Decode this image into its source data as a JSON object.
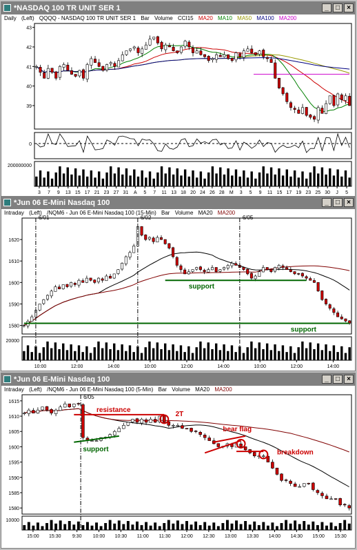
{
  "colors": {
    "ma20": "#cc0000",
    "ma10": "#008000",
    "ma50": "#999900",
    "ma100": "#000080",
    "ma200": "#cc00cc",
    "up": "#ffffff",
    "down": "#cc0000",
    "annot_red": "#cc0000",
    "annot_green": "#006600"
  },
  "window_buttons": {
    "minimize": "_",
    "maximize": "□",
    "close": "×"
  },
  "windows": [
    {
      "title": "*NASDAQ 100 TR UNIT SER 1",
      "period": "Daily",
      "axis": "(Left)",
      "symbol": "QQQQ - NASDAQ 100 TR UNIT SER 1",
      "type": "Bar",
      "volume": "Volume",
      "cci": "CCI15",
      "ma_labels": [
        "MA20",
        "MA10",
        "MA50",
        "MA100",
        "MA200"
      ]
    },
    {
      "title": "*Jun 06  E-Mini Nasdaq 100",
      "period": "Intraday",
      "axis": "(Left)",
      "symbol": "/NQM6 - Jun 06  E-Mini Nasdaq 100 (15-Min)",
      "type": "Bar",
      "volume": "Volume",
      "ma_labels": [
        "MA20",
        "MA200"
      ]
    },
    {
      "title": "*Jun 06  E-Mini Nasdaq 100",
      "period": "Intraday",
      "axis": "(Left)",
      "symbol": "/NQM6 - Jun 06  E-Mini Nasdaq 100 (5-Min)",
      "type": "Bar",
      "volume": "Volume",
      "ma_labels": [
        "MA20",
        "MA200"
      ]
    }
  ],
  "chart_data": [
    {
      "type": "candlestick",
      "ylim": [
        37.8,
        43.2
      ],
      "yticks": [
        "43",
        "42",
        "41",
        "40",
        "39"
      ],
      "xticks": [
        "3",
        "7",
        "9",
        "13",
        "15",
        "17",
        "21",
        "23",
        "27",
        "31",
        "A",
        "5",
        "7",
        "11",
        "13",
        "18",
        "20",
        "24",
        "26",
        "28",
        "M",
        "3",
        "5",
        "9",
        "11",
        "15",
        "17",
        "19",
        "23",
        "25",
        "30",
        "J",
        "5"
      ],
      "closes": [
        41.0,
        40.7,
        40.4,
        40.9,
        40.7,
        40.4,
        41.0,
        41.1,
        40.8,
        40.6,
        40.5,
        40.8,
        40.4,
        41.1,
        41.4,
        41.2,
        41.0,
        40.8,
        41.1,
        41.2,
        41.0,
        41.3,
        41.6,
        41.8,
        41.9,
        42.0,
        41.7,
        41.9,
        42.1,
        42.4,
        42.5,
        42.2,
        41.9,
        42.1,
        42.0,
        41.8,
        41.7,
        42.0,
        42.3,
        42.0,
        41.7,
        41.8,
        41.6,
        41.5,
        41.3,
        41.4,
        41.6,
        41.5,
        41.6,
        41.4,
        41.3,
        41.7,
        41.5,
        41.8,
        41.9,
        41.7,
        41.6,
        41.8,
        41.5,
        41.4,
        41.2,
        40.4,
        39.9,
        39.6,
        39.2,
        38.9,
        38.8,
        38.6,
        38.9,
        38.5,
        38.4,
        38.3,
        38.9,
        38.6,
        39.1,
        39.5,
        39.0,
        39.6,
        39.3,
        39.5,
        39.0
      ],
      "cci_zero": "0",
      "volume_label": "200000000"
    },
    {
      "type": "candlestick",
      "ylim": [
        1576,
        1630
      ],
      "yticks": [
        "1620",
        "1610",
        "1600",
        "1590",
        "1580"
      ],
      "xticks": [
        "10:00",
        "12:00",
        "14:00",
        "10:00",
        "12:00",
        "14:00",
        "10:00",
        "12:00",
        "14:00"
      ],
      "closes": [
        1580,
        1582,
        1584,
        1587,
        1590,
        1592,
        1594,
        1596,
        1598,
        1597,
        1599,
        1598,
        1600,
        1599,
        1601,
        1600,
        1602,
        1601,
        1600,
        1602,
        1601,
        1603,
        1602,
        1604,
        1606,
        1609,
        1612,
        1614,
        1617,
        1626,
        1622,
        1620,
        1621,
        1619,
        1621,
        1620,
        1618,
        1616,
        1612,
        1608,
        1606,
        1604,
        1605,
        1606,
        1607,
        1606,
        1605,
        1606,
        1607,
        1605,
        1606,
        1607,
        1608,
        1609,
        1608,
        1607,
        1606,
        1604,
        1602,
        1603,
        1605,
        1607,
        1606,
        1605,
        1607,
        1608,
        1607,
        1606,
        1605,
        1604,
        1604,
        1603,
        1602,
        1601,
        1600,
        1596,
        1592,
        1590,
        1588,
        1586,
        1584,
        1583,
        1582,
        1581
      ],
      "dates": [
        "6/01",
        "6/02",
        "6/05"
      ],
      "annotations": [
        "support",
        "support"
      ],
      "volume_label": "20000"
    },
    {
      "type": "candlestick",
      "ylim": [
        1578,
        1617
      ],
      "yticks": [
        "1615",
        "1610",
        "1605",
        "1600",
        "1595",
        "1590",
        "1585",
        "1580"
      ],
      "xticks": [
        "15:00",
        "15:30",
        "9:30",
        "10:00",
        "10:30",
        "11:00",
        "11:30",
        "12:00",
        "12:30",
        "13:00",
        "13:30",
        "14:00",
        "14:30",
        "15:00",
        "15:30"
      ],
      "closes": [
        1611,
        1612,
        1611,
        1612,
        1613,
        1612,
        1611,
        1612,
        1613,
        1614,
        1613,
        1614,
        1614,
        1603,
        1602,
        1602,
        1602,
        1603,
        1603,
        1604,
        1605,
        1606,
        1607,
        1608,
        1609,
        1608,
        1609,
        1608,
        1609,
        1608,
        1610,
        1608,
        1607,
        1607,
        1607,
        1606,
        1606,
        1605,
        1605,
        1604,
        1603,
        1602,
        1601,
        1600,
        1600,
        1601,
        1600,
        1601,
        1600,
        1599,
        1598,
        1597,
        1597,
        1597,
        1595,
        1593,
        1591,
        1589,
        1589,
        1588,
        1587,
        1587,
        1588,
        1588,
        1586,
        1585,
        1584,
        1583,
        1583,
        1583,
        1581,
        1581,
        1580
      ],
      "dates": [
        "6/05"
      ],
      "annotations": [
        "resistance",
        "2T",
        "bear flag",
        "breakdown",
        "support"
      ],
      "volume_label": "10000"
    }
  ]
}
